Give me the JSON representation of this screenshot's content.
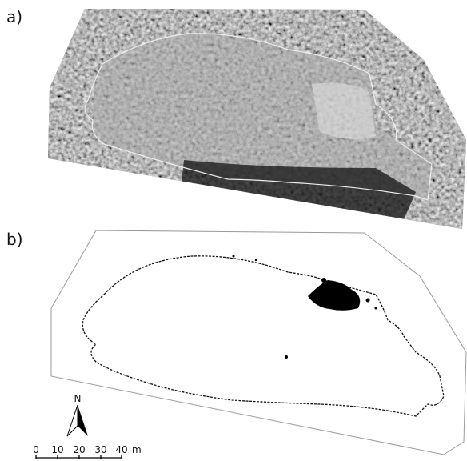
{
  "panels": [
    {
      "label": "a)"
    },
    {
      "label": "b)"
    }
  ],
  "north_arrow": {
    "label": "N"
  },
  "scale_bar": {
    "labels": [
      "0",
      "10",
      "20",
      "30",
      "40"
    ],
    "unit": "m"
  }
}
